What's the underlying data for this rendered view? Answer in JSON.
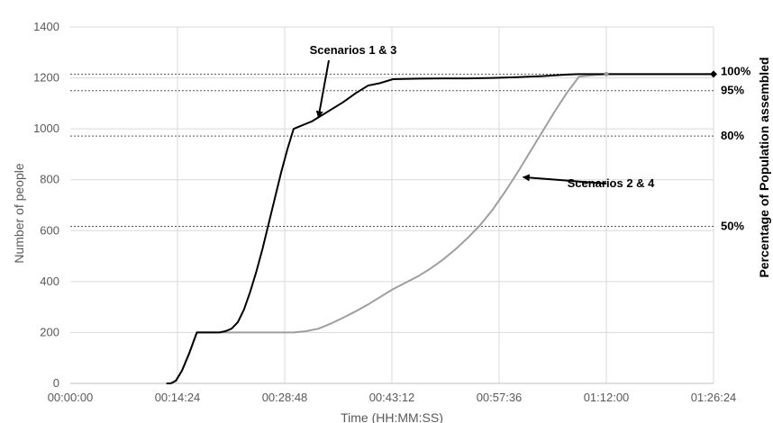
{
  "chart_data": {
    "type": "line",
    "title": "",
    "xlabel": "Time (HH:MM:SS)",
    "ylabel": "Number of people",
    "y2label": "Percentage of Population assembled",
    "ylim": [
      0,
      1400
    ],
    "xlim": [
      0,
      5184
    ],
    "grid": "horizontal",
    "y_ticks": [
      0,
      200,
      400,
      600,
      800,
      1000,
      1200,
      1400
    ],
    "y_tick_labels": [
      "0",
      "200",
      "400",
      "600",
      "800",
      "1000",
      "1200",
      "1400"
    ],
    "x_ticks": [
      0,
      864,
      1728,
      2592,
      3456,
      4320,
      5184
    ],
    "x_tick_labels": [
      "00:00:00",
      "00:14:24",
      "00:28:48",
      "00:43:12",
      "00:57:36",
      "01:12:00",
      "01:26:24"
    ],
    "reference_lines": [
      {
        "label": "100%",
        "value": 1215
      },
      {
        "label": "95%",
        "value": 1150
      },
      {
        "label": "80%",
        "value": 972
      },
      {
        "label": "50%",
        "value": 617
      }
    ],
    "series": [
      {
        "name": "Scenarios 1 & 3",
        "color": "#000000",
        "x": [
          780,
          810,
          850,
          900,
          960,
          1020,
          1080,
          1140,
          1200,
          1250,
          1300,
          1350,
          1400,
          1450,
          1500,
          1550,
          1600,
          1650,
          1700,
          1750,
          1800,
          1850,
          1900,
          1950,
          2000,
          2050,
          2100,
          2150,
          2200,
          2300,
          2400,
          2500,
          2600,
          2800,
          3000,
          3200,
          3400,
          3600,
          3700,
          3800,
          3900,
          4000,
          4100,
          4200,
          4320,
          4500,
          4800,
          5000,
          5184
        ],
        "y": [
          0,
          0,
          10,
          50,
          120,
          200,
          200,
          200,
          200,
          205,
          215,
          240,
          290,
          360,
          440,
          530,
          630,
          730,
          830,
          920,
          1000,
          1010,
          1020,
          1030,
          1045,
          1060,
          1075,
          1090,
          1105,
          1140,
          1170,
          1180,
          1195,
          1197,
          1198,
          1198,
          1200,
          1203,
          1205,
          1207,
          1210,
          1213,
          1215,
          1215,
          1215,
          1215,
          1215,
          1215,
          1215
        ]
      },
      {
        "name": "Scenarios 2 & 4",
        "color": "#9e9e9e",
        "x": [
          780,
          810,
          850,
          900,
          960,
          1020,
          1080,
          1200,
          1400,
          1600,
          1800,
          1900,
          2000,
          2100,
          2200,
          2300,
          2400,
          2500,
          2600,
          2700,
          2800,
          2900,
          3000,
          3100,
          3200,
          3300,
          3400,
          3500,
          3600,
          3700,
          3800,
          3900,
          4000,
          4100,
          4200,
          4320,
          4500,
          4800,
          5000,
          5184
        ],
        "y": [
          0,
          0,
          10,
          50,
          120,
          200,
          200,
          200,
          200,
          200,
          200,
          205,
          215,
          235,
          258,
          283,
          310,
          340,
          370,
          395,
          420,
          450,
          485,
          525,
          570,
          620,
          680,
          750,
          825,
          905,
          985,
          1065,
          1140,
          1205,
          1210,
          1215,
          1215,
          1215,
          1215,
          1215
        ]
      }
    ],
    "annotations": [
      {
        "label": "Scenarios 1 & 3",
        "points_to": {
          "x": 2000,
          "y": 1045
        }
      },
      {
        "label": "Scenarios 2 & 4",
        "points_to": {
          "x": 3650,
          "y": 810
        }
      }
    ]
  }
}
